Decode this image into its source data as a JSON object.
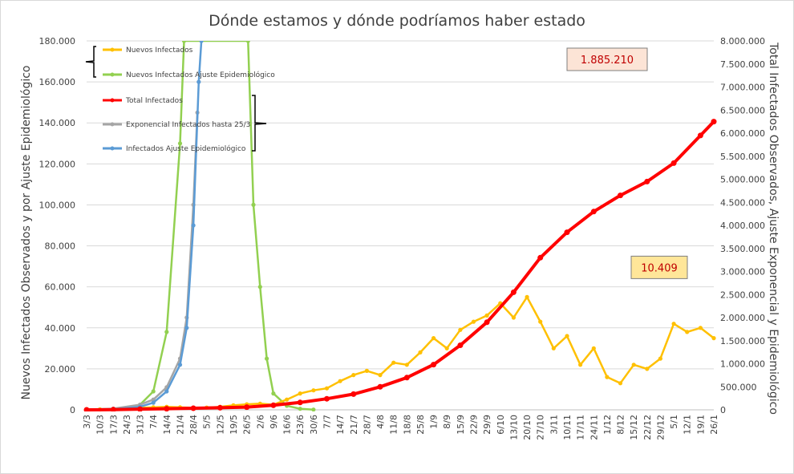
{
  "chart_data": {
    "type": "line",
    "title": "Dónde estamos y dónde podríamos haber estado",
    "ylabel_left": "Nuevos Infectados Observados y por Ajuste Epidemiológico",
    "ylabel_right": "Total Infectados Observados, Ajuste Exponencial y Epidemiológico",
    "ylim_left": [
      0,
      180000
    ],
    "ylim_right": [
      0,
      8000000
    ],
    "yticks_left": [
      "0",
      "20.000",
      "40.000",
      "60.000",
      "80.000",
      "100.000",
      "120.000",
      "140.000",
      "160.000",
      "180.000"
    ],
    "yticks_right": [
      "0",
      "500.000",
      "1.000.000",
      "1.500.000",
      "2.000.000",
      "2.500.000",
      "3.000.000",
      "3.500.000",
      "4.000.000",
      "4.500.000",
      "5.000.000",
      "5.500.000",
      "6.000.000",
      "6.500.000",
      "7.000.000",
      "7.500.000",
      "8.000.000"
    ],
    "x_categories": [
      "3/3",
      "10/3",
      "17/3",
      "24/3",
      "31/3",
      "7/4",
      "14/4",
      "21/4",
      "28/4",
      "5/5",
      "12/5",
      "19/5",
      "26/5",
      "2/6",
      "9/6",
      "16/6",
      "23/6",
      "30/6",
      "7/7",
      "14/7",
      "21/7",
      "28/7",
      "4/8",
      "11/8",
      "18/8",
      "25/8",
      "1/9",
      "8/9",
      "15/9",
      "22/9",
      "29/9",
      "6/10",
      "13/10",
      "20/10",
      "27/10",
      "3/11",
      "10/11",
      "17/11",
      "24/11",
      "1/12",
      "8/12",
      "15/12",
      "22/12",
      "29/12",
      "5/1",
      "12/1",
      "19/1",
      "26/1"
    ],
    "grid": true,
    "legend_position": "top-left",
    "series": [
      {
        "name": "Nuevos Infectados",
        "axis": "left",
        "color": "#ffc000",
        "points": [
          [
            0,
            100
          ],
          [
            1,
            200
          ],
          [
            2,
            500
          ],
          [
            3,
            800
          ],
          [
            4,
            1000
          ],
          [
            5,
            1200
          ],
          [
            6,
            1500
          ],
          [
            7,
            1200
          ],
          [
            8,
            1000
          ],
          [
            9,
            1100
          ],
          [
            10,
            1500
          ],
          [
            11,
            2200
          ],
          [
            12,
            2700
          ],
          [
            13,
            3000
          ],
          [
            14,
            2500
          ],
          [
            15,
            5000
          ],
          [
            16,
            8000
          ],
          [
            17,
            9500
          ],
          [
            18,
            10500
          ],
          [
            19,
            14000
          ],
          [
            20,
            17000
          ],
          [
            21,
            19000
          ],
          [
            22,
            17000
          ],
          [
            23,
            23000
          ],
          [
            24,
            22000
          ],
          [
            25,
            28000
          ],
          [
            26,
            35000
          ],
          [
            27,
            30000
          ],
          [
            28,
            39000
          ],
          [
            29,
            43000
          ],
          [
            30,
            46000
          ],
          [
            31,
            52000
          ],
          [
            32,
            45000
          ],
          [
            33,
            55000
          ],
          [
            34,
            43000
          ],
          [
            35,
            30000
          ],
          [
            36,
            36000
          ],
          [
            37,
            22000
          ],
          [
            38,
            30000
          ],
          [
            39,
            16000
          ],
          [
            40,
            13000
          ],
          [
            41,
            22000
          ],
          [
            42,
            20000
          ],
          [
            43,
            25000
          ],
          [
            44,
            42000
          ],
          [
            45,
            38000
          ],
          [
            46,
            40000
          ],
          [
            47,
            35000
          ]
        ]
      },
      {
        "name": "Nuevos Infectados Ajuste Epidemiológico",
        "axis": "left",
        "color": "#92d050",
        "points": [
          [
            0,
            100
          ],
          [
            1,
            200
          ],
          [
            2,
            400
          ],
          [
            3,
            900
          ],
          [
            4,
            2500
          ],
          [
            5,
            9000
          ],
          [
            6,
            38000
          ],
          [
            7,
            130000
          ],
          [
            7.3,
            180000
          ],
          [
            12.1,
            180000
          ],
          [
            12.5,
            100000
          ],
          [
            13,
            60000
          ],
          [
            13.5,
            25000
          ],
          [
            14,
            8000
          ],
          [
            15,
            2000
          ],
          [
            16,
            500
          ],
          [
            17,
            100
          ]
        ]
      },
      {
        "name": "Total Infectados",
        "axis": "right",
        "color": "#ff0000",
        "points": [
          [
            0,
            0
          ],
          [
            2,
            4000
          ],
          [
            4,
            15000
          ],
          [
            6,
            25000
          ],
          [
            8,
            35000
          ],
          [
            10,
            45000
          ],
          [
            12,
            60000
          ],
          [
            14,
            100000
          ],
          [
            16,
            160000
          ],
          [
            18,
            240000
          ],
          [
            20,
            340000
          ],
          [
            22,
            500000
          ],
          [
            24,
            700000
          ],
          [
            26,
            980000
          ],
          [
            28,
            1400000
          ],
          [
            30,
            1900000
          ],
          [
            32,
            2550000
          ],
          [
            34,
            3300000
          ],
          [
            36,
            3850000
          ],
          [
            38,
            4300000
          ],
          [
            40,
            4650000
          ],
          [
            42,
            4950000
          ],
          [
            44,
            5350000
          ],
          [
            46,
            5950000
          ],
          [
            47,
            6250000
          ]
        ]
      },
      {
        "name": "Exponencial Infectados hasta 25/3",
        "axis": "left",
        "color": "#a5a5a5",
        "points": [
          [
            0,
            100
          ],
          [
            2,
            600
          ],
          [
            4,
            2500
          ],
          [
            5,
            5000
          ],
          [
            6,
            11000
          ],
          [
            7,
            25000
          ],
          [
            7.5,
            45000
          ],
          [
            8,
            100000
          ],
          [
            8.3,
            145000
          ]
        ]
      },
      {
        "name": "Infectados Ajuste Epidemiológico",
        "axis": "left",
        "color": "#5b9bd5",
        "points": [
          [
            0,
            50
          ],
          [
            2,
            300
          ],
          [
            4,
            1500
          ],
          [
            5,
            3500
          ],
          [
            6,
            9000
          ],
          [
            7,
            22000
          ],
          [
            7.5,
            40000
          ],
          [
            8,
            90000
          ],
          [
            8.4,
            160000
          ],
          [
            8.6,
            180000
          ]
        ]
      }
    ],
    "callouts": [
      {
        "value": "1.885.210",
        "axis": "right",
        "y": 7600000
      },
      {
        "value": "10.409",
        "axis": "left",
        "y": 69500
      }
    ]
  }
}
